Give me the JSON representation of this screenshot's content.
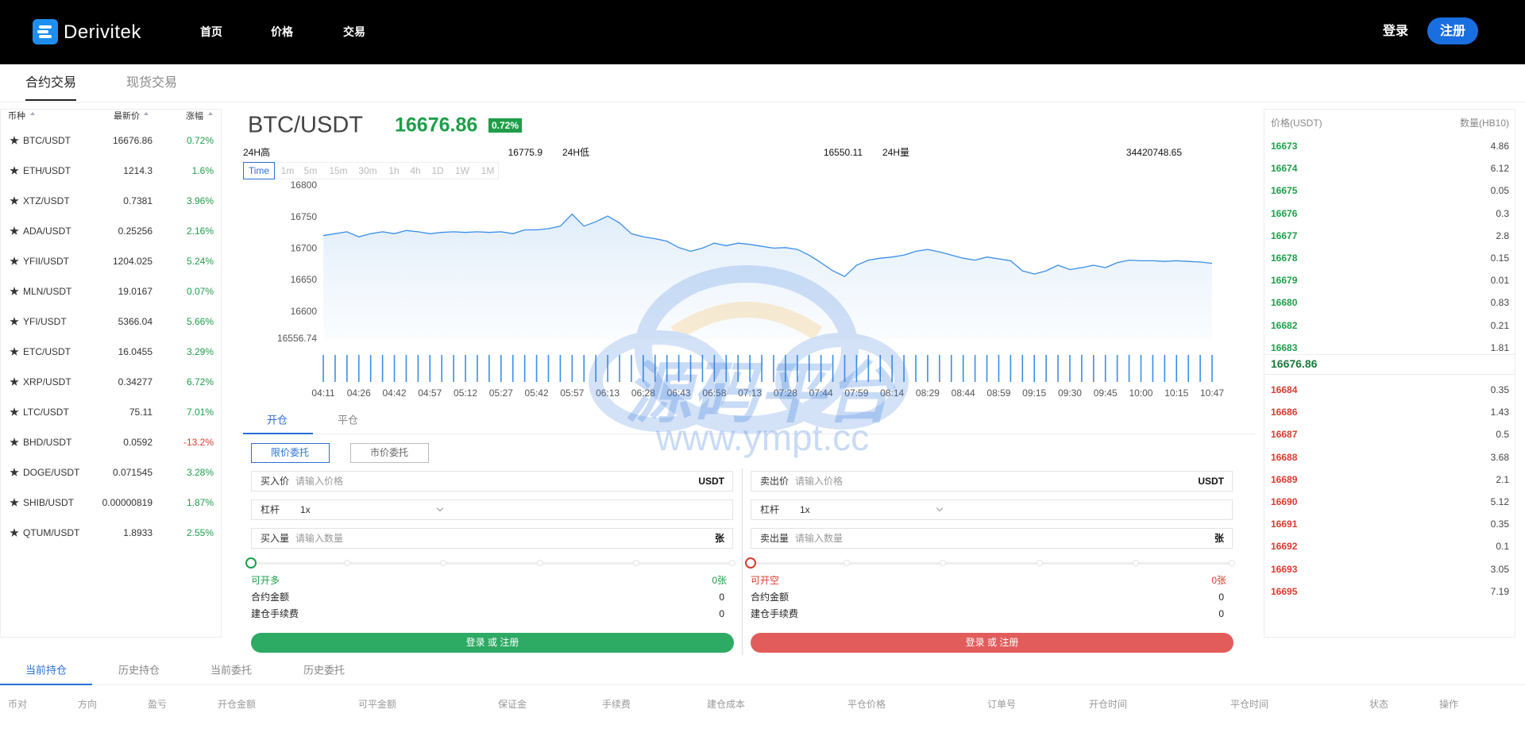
{
  "header": {
    "logo": "Derivitek",
    "nav": [
      "首页",
      "价格",
      "交易"
    ],
    "login": "登录",
    "register": "注册"
  },
  "tabs": [
    "合约交易",
    "现货交易"
  ],
  "market": {
    "columns": [
      "币种",
      "最新价",
      "涨幅"
    ],
    "rows": [
      [
        "BTC/USDT",
        "16676.86",
        "0.72%"
      ],
      [
        "ETH/USDT",
        "1214.3",
        "1.6%"
      ],
      [
        "XTZ/USDT",
        "0.7381",
        "3.96%"
      ],
      [
        "ADA/USDT",
        "0.25256",
        "2.16%"
      ],
      [
        "YFII/USDT",
        "1204.025",
        "5.24%"
      ],
      [
        "MLN/USDT",
        "19.0167",
        "0.07%"
      ],
      [
        "YFI/USDT",
        "5366.04",
        "5.66%"
      ],
      [
        "ETC/USDT",
        "16.0455",
        "3.29%"
      ],
      [
        "XRP/USDT",
        "0.34277",
        "6.72%"
      ],
      [
        "LTC/USDT",
        "75.11",
        "7.01%"
      ],
      [
        "BHD/USDT",
        "0.0592",
        "-13.2%"
      ],
      [
        "DOGE/USDT",
        "0.071545",
        "3.28%"
      ],
      [
        "SHIB/USDT",
        "0.00000819",
        "1.87%"
      ],
      [
        "QTUM/USDT",
        "1.8933",
        "2.55%"
      ]
    ]
  },
  "ticker": {
    "pair": "BTC/USDT",
    "price": "16676.86",
    "change": "0.72%",
    "high_label": "24H高",
    "high": "16775.9",
    "low_label": "24H低",
    "low": "16550.11",
    "vol_label": "24H量",
    "vol": "34420748.65"
  },
  "intervals": [
    "Time",
    "1m",
    "5m",
    "15m",
    "30m",
    "1h",
    "4h",
    "1D",
    "1W",
    "1M"
  ],
  "chart_data": {
    "type": "line",
    "color": "#3a8ee6",
    "categories": [
      "04:11",
      null,
      null,
      "04:26",
      null,
      null,
      "04:42",
      null,
      null,
      "04:57",
      null,
      null,
      "05:12",
      null,
      null,
      "05:27",
      null,
      null,
      "05:42",
      null,
      null,
      "05:57",
      null,
      null,
      "06:13",
      null,
      null,
      "06:28",
      null,
      null,
      "06:43",
      null,
      null,
      "06:58",
      null,
      null,
      "07:13",
      null,
      null,
      "07:28",
      null,
      null,
      "07:44",
      null,
      null,
      "07:59",
      null,
      null,
      "08:14",
      null,
      null,
      "08:29",
      null,
      null,
      "08:44",
      null,
      null,
      "08:59",
      null,
      null,
      "09:15",
      null,
      null,
      "09:30",
      null,
      null,
      "09:45",
      null,
      null,
      "10:00",
      null,
      null,
      "10:15",
      null,
      null,
      "10:47"
    ],
    "values": [
      16721,
      16724,
      16727,
      16719,
      16724,
      16727,
      16724,
      16729,
      16727,
      16724,
      16726,
      16727,
      16726,
      16727,
      16726,
      16727,
      16724,
      16730,
      16730,
      16732,
      16736,
      16755,
      16736,
      16743,
      16752,
      16741,
      16724,
      16719,
      16716,
      16712,
      16702,
      16696,
      16701,
      16709,
      16705,
      16709,
      16707,
      16704,
      16701,
      16702,
      16699,
      16690,
      16678,
      16665,
      16656,
      16674,
      16682,
      16685,
      16687,
      16690,
      16696,
      16699,
      16695,
      16690,
      16685,
      16682,
      16687,
      16684,
      16681,
      16665,
      16660,
      16665,
      16674,
      16667,
      16670,
      16674,
      16670,
      16678,
      16682,
      16681,
      16681,
      16680,
      16681,
      16680,
      16679,
      16677
    ],
    "volume": [
      1,
      1,
      1,
      1,
      1,
      1,
      1,
      1,
      1,
      1,
      1,
      1,
      1,
      1,
      1,
      1,
      1,
      1,
      1,
      1,
      1,
      1,
      1,
      1,
      1,
      1,
      1,
      1,
      1,
      1,
      1,
      1,
      1,
      1,
      1,
      1,
      1,
      1,
      1,
      1,
      1,
      1,
      1,
      1,
      1,
      1,
      1,
      1,
      1,
      1,
      1,
      1,
      1,
      1,
      1,
      1,
      1,
      1,
      1,
      1,
      1,
      1,
      1,
      1,
      1,
      1,
      1,
      1,
      1,
      1,
      1,
      1,
      1,
      1,
      1,
      1
    ],
    "ylim": [
      16556.74,
      16800
    ],
    "yticks": [
      16800,
      16750,
      16700,
      16650,
      16600,
      16556.74
    ]
  },
  "trade": {
    "tabs": [
      "开仓",
      "平仓"
    ],
    "order_types": [
      "限价委托",
      "市价委托"
    ],
    "buy": {
      "price_label": "买入价",
      "price_placeholder": "请输入价格",
      "price_unit": "USDT",
      "leverage_label": "杠杆",
      "leverage": "1x",
      "qty_label": "买入量",
      "qty_placeholder": "请输入数量",
      "qty_unit": "张",
      "available_label": "可开多",
      "available": "0张",
      "amount_label": "合约金额",
      "amount": "0",
      "fee_label": "建仓手续费",
      "fee": "0",
      "button": "登录 或 注册"
    },
    "sell": {
      "price_label": "卖出价",
      "price_placeholder": "请输入价格",
      "price_unit": "USDT",
      "leverage_label": "杠杆",
      "leverage": "1x",
      "qty_label": "卖出量",
      "qty_placeholder": "请输入数量",
      "qty_unit": "张",
      "available_label": "可开空",
      "available": "0张",
      "amount_label": "合约金额",
      "amount": "0",
      "fee_label": "建仓手续费",
      "fee": "0",
      "button": "登录 或 注册"
    }
  },
  "orderbook": {
    "columns": [
      "价格(USDT)",
      "数量(HB10)"
    ],
    "asks": [
      [
        "16673",
        "4.86"
      ],
      [
        "16674",
        "6.12"
      ],
      [
        "16675",
        "0.05"
      ],
      [
        "16676",
        "0.3"
      ],
      [
        "16677",
        "2.8"
      ],
      [
        "16678",
        "0.15"
      ],
      [
        "16679",
        "0.01"
      ],
      [
        "16680",
        "0.83"
      ],
      [
        "16682",
        "0.21"
      ],
      [
        "16683",
        "1.81"
      ]
    ],
    "last": "16676.86",
    "bids": [
      [
        "16684",
        "0.35"
      ],
      [
        "16686",
        "1.43"
      ],
      [
        "16687",
        "0.5"
      ],
      [
        "16688",
        "3.68"
      ],
      [
        "16689",
        "2.1"
      ],
      [
        "16690",
        "5.12"
      ],
      [
        "16691",
        "0.35"
      ],
      [
        "16692",
        "0.1"
      ],
      [
        "16693",
        "3.05"
      ],
      [
        "16695",
        "7.19"
      ]
    ]
  },
  "positions": {
    "tabs": [
      "当前持仓",
      "历史持仓",
      "当前委托",
      "历史委托"
    ],
    "columns": [
      "币对",
      "方向",
      "盈亏",
      "开仓金额",
      "可平金额",
      "保证金",
      "手续费",
      "建仓成本",
      "平仓价格",
      "订单号",
      "开仓时间",
      "平仓时间",
      "状态",
      "操作"
    ]
  },
  "watermark": {
    "title": "源码平台",
    "url": "www.ympt.cc"
  }
}
